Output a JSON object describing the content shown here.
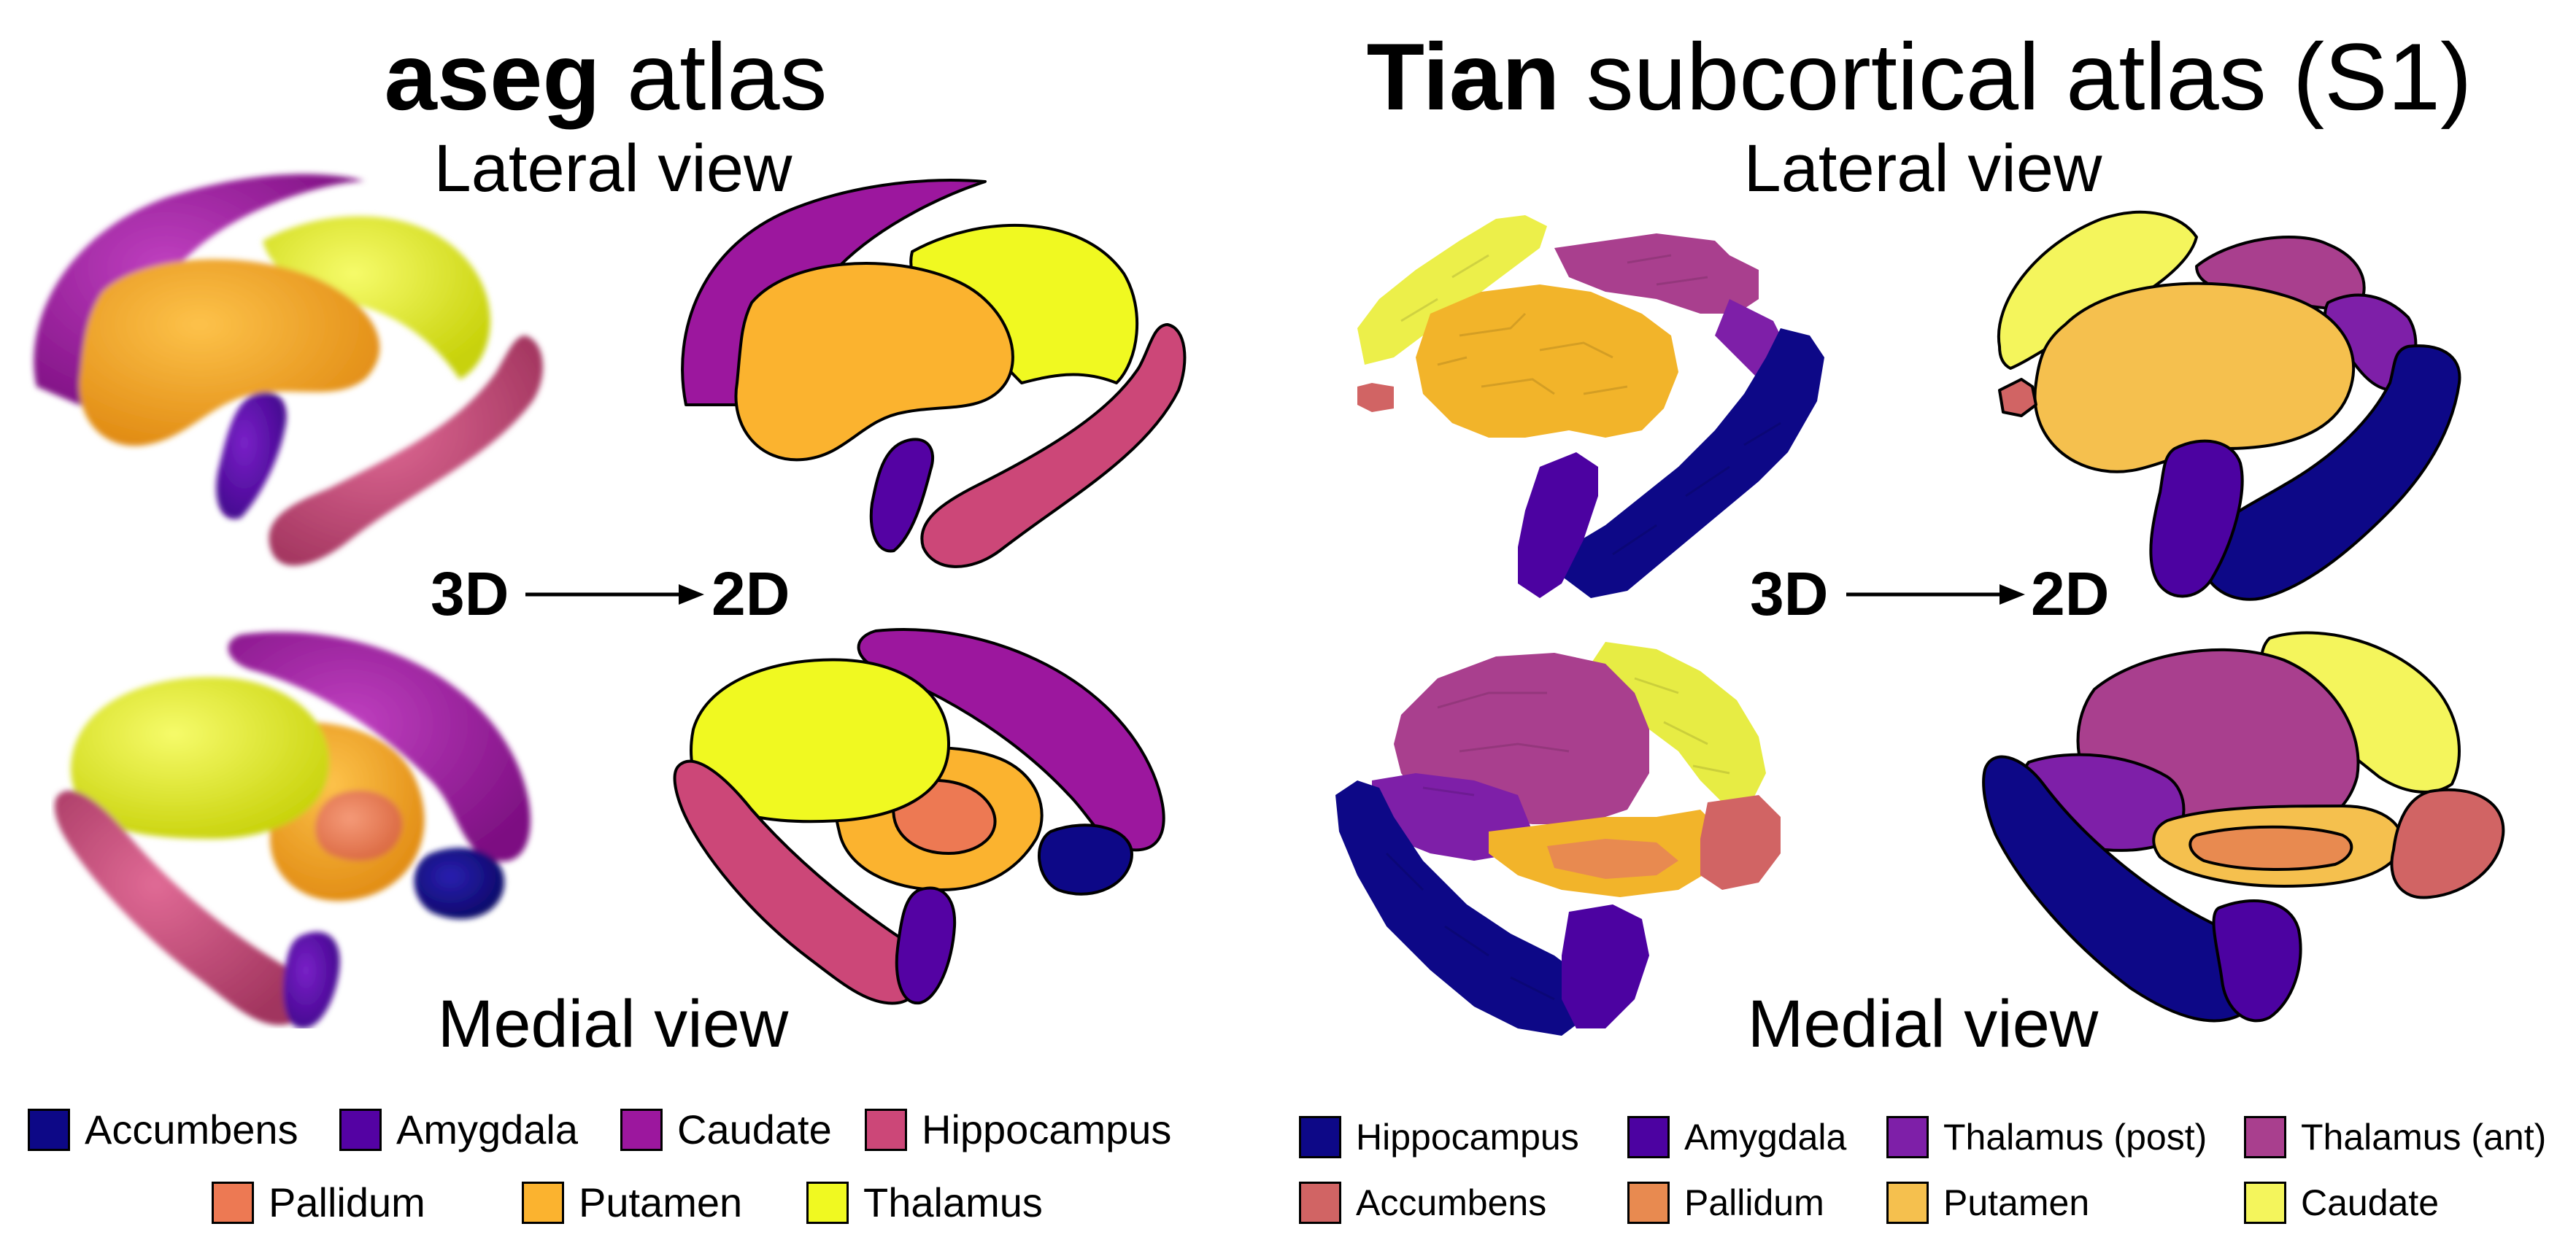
{
  "left_panel": {
    "title_bold": "aseg",
    "title_rest": " atlas",
    "lateral_label": "Lateral view",
    "medial_label": "Medial view",
    "from_label": "3D",
    "to_label": "2D",
    "legend": [
      {
        "label": "Accumbens",
        "color": "#0d0887"
      },
      {
        "label": "Amygdala",
        "color": "#5402a3"
      },
      {
        "label": "Caudate",
        "color": "#9c179e"
      },
      {
        "label": "Hippocampus",
        "color": "#cc4778"
      },
      {
        "label": "Pallidum",
        "color": "#ed7953"
      },
      {
        "label": "Putamen",
        "color": "#fbb32f"
      },
      {
        "label": "Thalamus",
        "color": "#f0f921"
      }
    ]
  },
  "right_panel": {
    "title_bold": "Tian",
    "title_rest": " subcortical atlas (S1)",
    "lateral_label": "Lateral view",
    "medial_label": "Medial view",
    "from_label": "3D",
    "to_label": "2D",
    "legend": [
      {
        "label": "Hippocampus",
        "color": "#0d0887"
      },
      {
        "label": "Amygdala",
        "color": "#4c02a1"
      },
      {
        "label": "Thalamus (post)",
        "color": "#7e1fa8"
      },
      {
        "label": "Thalamus (ant)",
        "color": "#a93f8e"
      },
      {
        "label": "Accumbens",
        "color": "#d16464"
      },
      {
        "label": "Pallidum",
        "color": "#e88a50"
      },
      {
        "label": "Putamen",
        "color": "#f5c04e"
      },
      {
        "label": "Caudate",
        "color": "#f4f55c"
      }
    ]
  }
}
